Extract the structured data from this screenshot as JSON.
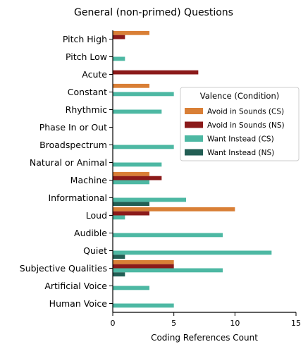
{
  "chart_data": {
    "type": "bar",
    "orientation": "horizontal",
    "title": "General (non-primed) Questions",
    "xlabel": "Coding References Count",
    "ylabel": "",
    "xlim": [
      0,
      15
    ],
    "xticks": [
      "0",
      "5",
      "10",
      "15"
    ],
    "grid": false,
    "categories": [
      "Pitch High",
      "Pitch Low",
      "Acute",
      "Constant",
      "Rhythmic",
      "Phase In or Out",
      "Broadspectrum",
      "Natural or Animal",
      "Machine",
      "Informational",
      "Loud",
      "Audible",
      "Quiet",
      "Subjective Qualities",
      "Artificial Voice",
      "Human Voice"
    ],
    "legend": {
      "title": "Valence (Condition)",
      "position": "right"
    },
    "series": [
      {
        "name": "Avoid in Sounds (CS)",
        "color": "#d97f36",
        "values": [
          3,
          0,
          0,
          3,
          0,
          0,
          0,
          0,
          3,
          0,
          10,
          0,
          0,
          5,
          0,
          0
        ]
      },
      {
        "name": "Avoid in Sounds (NS)",
        "color": "#8b1a1a",
        "values": [
          1,
          0,
          7,
          0,
          0,
          0,
          0,
          0,
          4,
          0,
          3,
          0,
          0,
          5,
          0,
          0
        ]
      },
      {
        "name": "Want Instead (CS)",
        "color": "#4db8a3",
        "values": [
          0,
          1,
          0,
          5,
          4,
          0,
          5,
          4,
          3,
          6,
          1,
          9,
          13,
          9,
          3,
          5
        ]
      },
      {
        "name": "Want Instead (NS)",
        "color": "#225e54",
        "values": [
          0,
          0,
          0,
          0,
          0,
          0,
          0,
          0,
          0,
          3,
          0,
          0,
          1,
          1,
          0,
          0
        ]
      }
    ]
  }
}
